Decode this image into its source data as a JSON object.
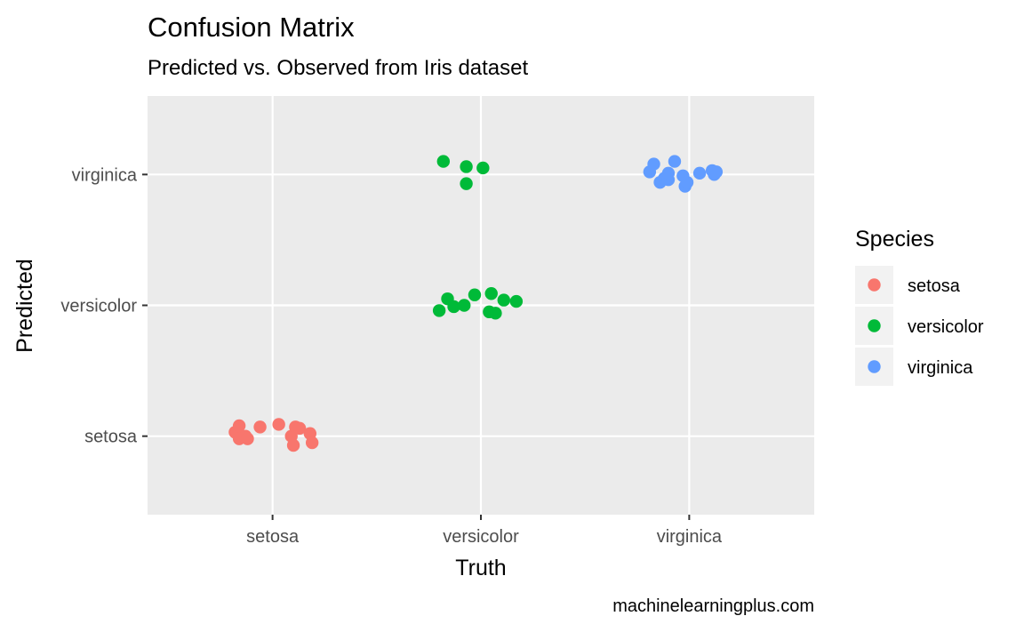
{
  "chart_data": {
    "type": "scatter",
    "title": "Confusion Matrix",
    "subtitle": "Predicted vs. Observed from Iris dataset",
    "xlabel": "Truth",
    "ylabel": "Predicted",
    "x_categories": [
      "setosa",
      "versicolor",
      "virginica"
    ],
    "y_categories": [
      "setosa",
      "versicolor",
      "virginica"
    ],
    "caption": "machinelearningplus.com",
    "grid": true,
    "legend": {
      "title": "Species",
      "position": "right"
    },
    "series": [
      {
        "name": "setosa",
        "color": "#F8766D",
        "points": [
          {
            "x": "setosa",
            "y": "setosa",
            "dx": -0.18,
            "dy": 0.03
          },
          {
            "x": "setosa",
            "y": "setosa",
            "dx": -0.16,
            "dy": 0.08
          },
          {
            "x": "setosa",
            "y": "setosa",
            "dx": -0.16,
            "dy": -0.02
          },
          {
            "x": "setosa",
            "y": "setosa",
            "dx": -0.13,
            "dy": 0.0
          },
          {
            "x": "setosa",
            "y": "setosa",
            "dx": -0.12,
            "dy": -0.02
          },
          {
            "x": "setosa",
            "y": "setosa",
            "dx": -0.06,
            "dy": 0.07
          },
          {
            "x": "setosa",
            "y": "setosa",
            "dx": 0.03,
            "dy": 0.09
          },
          {
            "x": "setosa",
            "y": "setosa",
            "dx": 0.09,
            "dy": 0.0
          },
          {
            "x": "setosa",
            "y": "setosa",
            "dx": 0.11,
            "dy": 0.07
          },
          {
            "x": "setosa",
            "y": "setosa",
            "dx": 0.13,
            "dy": 0.06
          },
          {
            "x": "setosa",
            "y": "setosa",
            "dx": 0.1,
            "dy": -0.07
          },
          {
            "x": "setosa",
            "y": "setosa",
            "dx": 0.18,
            "dy": 0.02
          },
          {
            "x": "setosa",
            "y": "setosa",
            "dx": 0.19,
            "dy": -0.05
          }
        ]
      },
      {
        "name": "versicolor",
        "color": "#00BA38",
        "points": [
          {
            "x": "versicolor",
            "y": "versicolor",
            "dx": -0.2,
            "dy": -0.04
          },
          {
            "x": "versicolor",
            "y": "versicolor",
            "dx": -0.16,
            "dy": 0.05
          },
          {
            "x": "versicolor",
            "y": "versicolor",
            "dx": -0.13,
            "dy": -0.01
          },
          {
            "x": "versicolor",
            "y": "versicolor",
            "dx": -0.08,
            "dy": 0.0
          },
          {
            "x": "versicolor",
            "y": "versicolor",
            "dx": -0.03,
            "dy": 0.08
          },
          {
            "x": "versicolor",
            "y": "versicolor",
            "dx": 0.05,
            "dy": 0.09
          },
          {
            "x": "versicolor",
            "y": "versicolor",
            "dx": 0.04,
            "dy": -0.05
          },
          {
            "x": "versicolor",
            "y": "versicolor",
            "dx": 0.07,
            "dy": -0.06
          },
          {
            "x": "versicolor",
            "y": "versicolor",
            "dx": 0.11,
            "dy": 0.04
          },
          {
            "x": "versicolor",
            "y": "versicolor",
            "dx": 0.17,
            "dy": 0.03
          },
          {
            "x": "versicolor",
            "y": "virginica",
            "dx": -0.18,
            "dy": 0.1
          },
          {
            "x": "versicolor",
            "y": "virginica",
            "dx": -0.07,
            "dy": 0.06
          },
          {
            "x": "versicolor",
            "y": "virginica",
            "dx": 0.01,
            "dy": 0.05
          },
          {
            "x": "versicolor",
            "y": "virginica",
            "dx": -0.07,
            "dy": -0.07
          }
        ]
      },
      {
        "name": "virginica",
        "color": "#619CFF",
        "points": [
          {
            "x": "virginica",
            "y": "virginica",
            "dx": -0.19,
            "dy": 0.02
          },
          {
            "x": "virginica",
            "y": "virginica",
            "dx": -0.17,
            "dy": 0.08
          },
          {
            "x": "virginica",
            "y": "virginica",
            "dx": -0.14,
            "dy": -0.06
          },
          {
            "x": "virginica",
            "y": "virginica",
            "dx": -0.12,
            "dy": -0.03
          },
          {
            "x": "virginica",
            "y": "virginica",
            "dx": -0.1,
            "dy": -0.04
          },
          {
            "x": "virginica",
            "y": "virginica",
            "dx": -0.1,
            "dy": 0.01
          },
          {
            "x": "virginica",
            "y": "virginica",
            "dx": -0.07,
            "dy": 0.1
          },
          {
            "x": "virginica",
            "y": "virginica",
            "dx": -0.03,
            "dy": -0.01
          },
          {
            "x": "virginica",
            "y": "virginica",
            "dx": -0.02,
            "dy": -0.09
          },
          {
            "x": "virginica",
            "y": "virginica",
            "dx": -0.01,
            "dy": -0.06
          },
          {
            "x": "virginica",
            "y": "virginica",
            "dx": 0.05,
            "dy": 0.01
          },
          {
            "x": "virginica",
            "y": "virginica",
            "dx": 0.12,
            "dy": 0.0
          },
          {
            "x": "virginica",
            "y": "virginica",
            "dx": 0.11,
            "dy": 0.03
          },
          {
            "x": "virginica",
            "y": "virginica",
            "dx": 0.13,
            "dy": 0.02
          }
        ]
      }
    ]
  }
}
